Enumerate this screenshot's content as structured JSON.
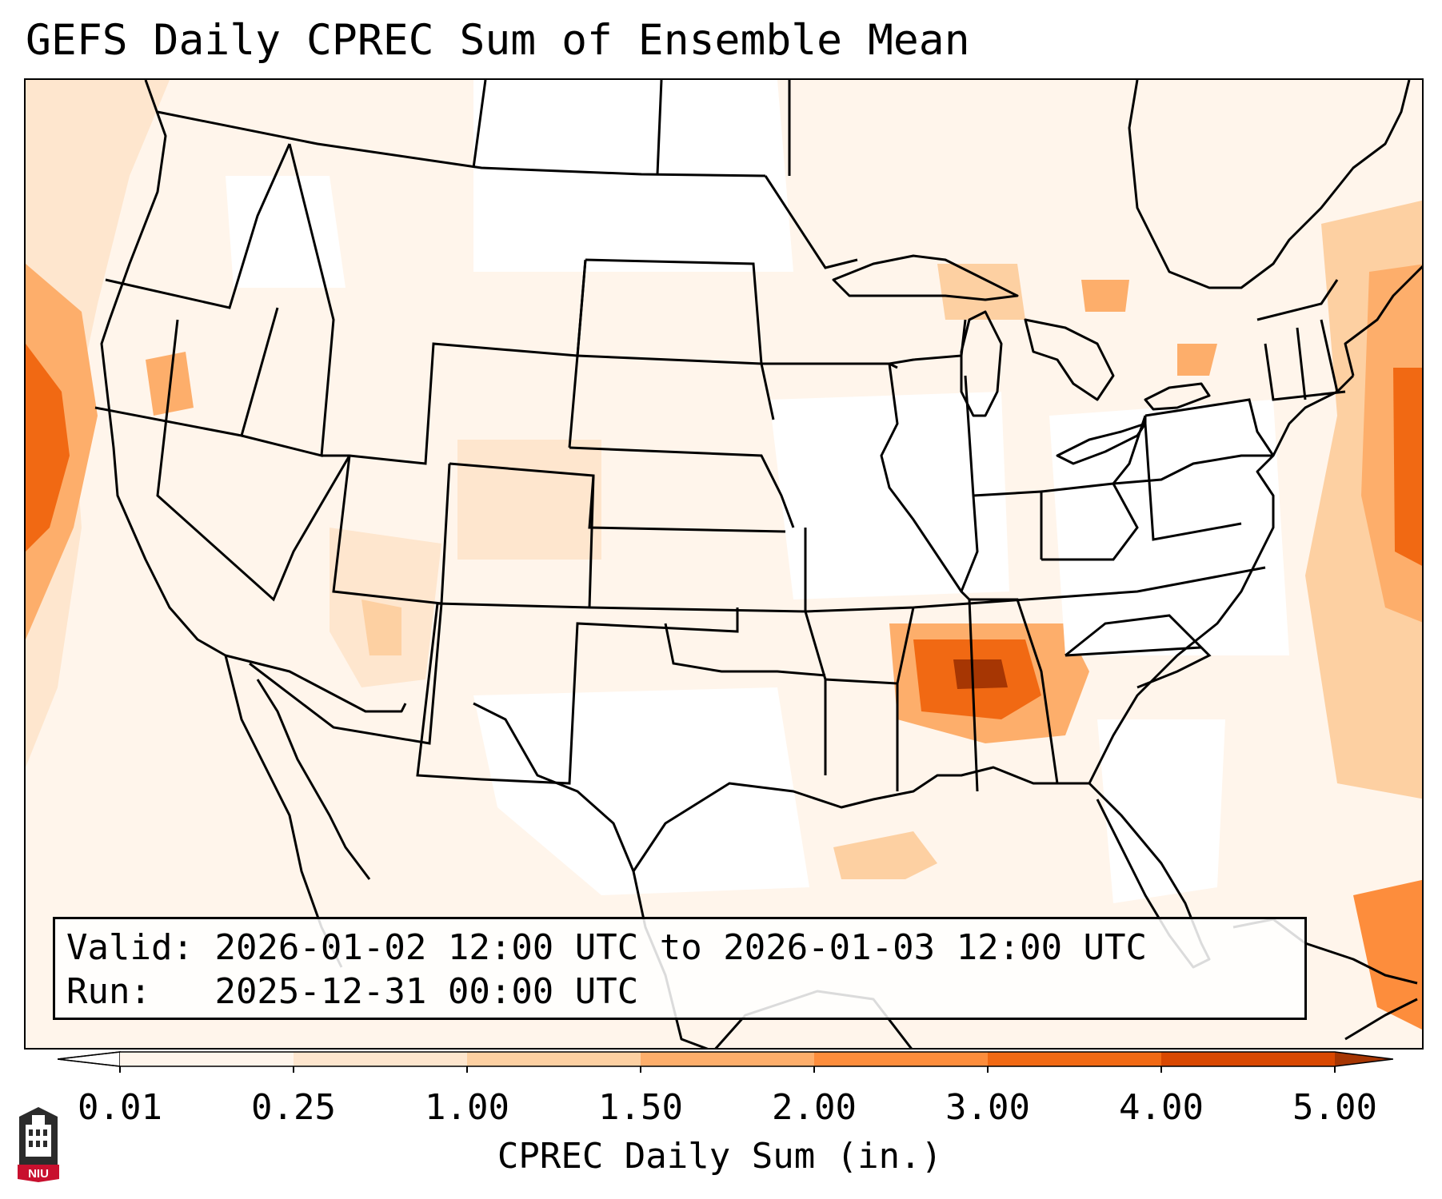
{
  "title": "GEFS Daily CPREC Sum of Ensemble Mean",
  "info": {
    "valid_label": "Valid:",
    "valid_value": "2026-01-02 12:00 UTC to 2026-01-03 12:00 UTC",
    "run_label": "Run:",
    "run_value": "2025-12-31 00:00 UTC"
  },
  "colorbar": {
    "label": "CPREC Daily Sum (in.)",
    "ticks": [
      "0.01",
      "0.25",
      "1.00",
      "1.50",
      "2.00",
      "3.00",
      "4.00",
      "5.00"
    ],
    "colors": [
      "#fff5eb",
      "#fee6ce",
      "#fdd0a2",
      "#fdae6b",
      "#fd8d3c",
      "#f16913",
      "#d94801",
      "#a63603"
    ]
  },
  "logo": {
    "text": "NIU",
    "icon": "niu-tower-logo"
  }
}
